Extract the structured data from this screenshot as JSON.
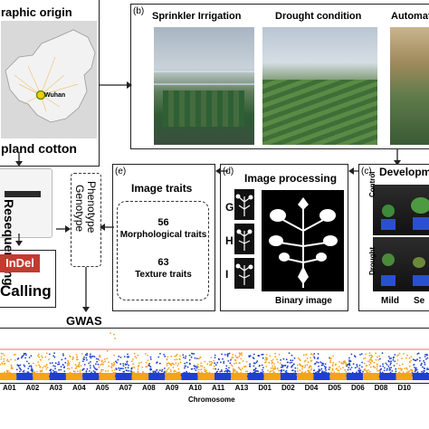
{
  "origin_panel": {
    "title": "raphic origin",
    "city_label": "Wuhan",
    "bottom_label": "pland cotton"
  },
  "panel_b": {
    "letter": "(b)",
    "titles": [
      "Sprinkler Irrigation",
      "Drought  condition",
      "Automat"
    ]
  },
  "left_column": {
    "reseq_label": "Resequencing",
    "indel_label": "InDel",
    "calling_label": "Calling"
  },
  "panel_e": {
    "letter": "(e)",
    "title": "Image traits",
    "morph_count": "56",
    "morph_label": "Morphological traits",
    "texture_count": "63",
    "texture_label": "Texture traits"
  },
  "pheno_geno": {
    "line1": "Phenotype",
    "line2": "Genotype"
  },
  "panel_d": {
    "letter": "(d)",
    "title": "Image processing",
    "row_letters": [
      "G",
      "H",
      "I"
    ],
    "binary_label": "Binary image"
  },
  "panel_c": {
    "letter": "(c)",
    "title": "Developm",
    "row_labels": [
      "Control",
      "Drought"
    ],
    "col_labels": [
      "Mild",
      "Se"
    ]
  },
  "gwas": {
    "title": "GWAS",
    "xlabel": "Chromosome",
    "ticks": [
      "A01",
      "A02",
      "A03",
      "A04",
      "A05",
      "A07",
      "A08",
      "A09",
      "A10",
      "A11",
      "A13",
      "D01",
      "D02",
      "D04",
      "D05",
      "D06",
      "D08",
      "D10"
    ]
  },
  "colors": {
    "orange": "#f7a21b",
    "blue": "#1f3fd0",
    "threshold": "#e0443a",
    "indel_red": "#c23a30"
  }
}
